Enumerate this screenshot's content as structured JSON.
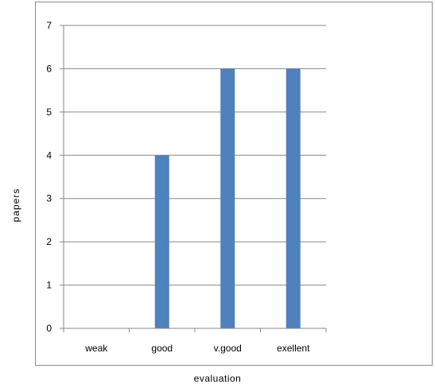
{
  "chart_data": {
    "type": "bar",
    "categories": [
      "weak",
      "good",
      "v.good",
      "exellent"
    ],
    "values": [
      0,
      4,
      6,
      6
    ],
    "title": "",
    "xlabel": "evaluation",
    "ylabel": "papers",
    "ylim": [
      0,
      7
    ],
    "yticks": [
      0,
      1,
      2,
      3,
      4,
      5,
      6,
      7
    ],
    "grid": true,
    "legend": "none",
    "bar_color": "#4f81bd"
  }
}
